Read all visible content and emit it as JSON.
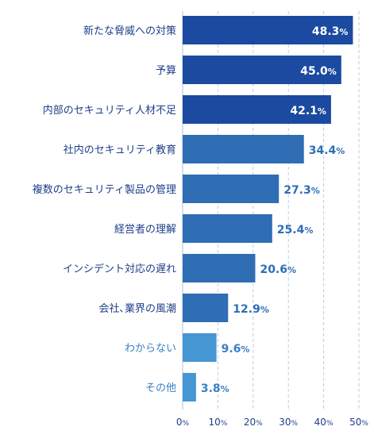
{
  "chart_data": {
    "type": "bar",
    "orientation": "horizontal",
    "categories": [
      "新たな脅威への対策",
      "予算",
      "内部のセキュリティ人材不足",
      "社内のセキュリティ教育",
      "複数のセキュリティ製品の管理",
      "経営者の理解",
      "インシデント対応の遅れ",
      "会社､業界の風潮",
      "わからない",
      "その他"
    ],
    "values": [
      48.3,
      45.0,
      42.1,
      34.4,
      27.3,
      25.4,
      20.6,
      12.9,
      9.6,
      3.8
    ],
    "value_labels": [
      "48.3",
      "45.0",
      "42.1",
      "34.4",
      "27.3",
      "25.4",
      "20.6",
      "12.9",
      "9.6",
      "3.8"
    ],
    "value_suffix": "%",
    "xlim": [
      0,
      50
    ],
    "x_ticks": [
      0,
      10,
      20,
      30,
      40,
      50
    ],
    "tick_suffix": "%",
    "grid": "vertical dashed",
    "title": "",
    "xlabel": "",
    "ylabel": "",
    "colors": {
      "dark": "#1b4aa0",
      "medium": "#2f6db5",
      "light": "#4596d3",
      "label_dark": "#1e3f8a",
      "label_light": "#3a7fc4",
      "grid": "#b9cde6"
    },
    "bar_color_groups": [
      "dark",
      "dark",
      "dark",
      "medium",
      "medium",
      "medium",
      "medium",
      "medium",
      "light",
      "light"
    ]
  }
}
